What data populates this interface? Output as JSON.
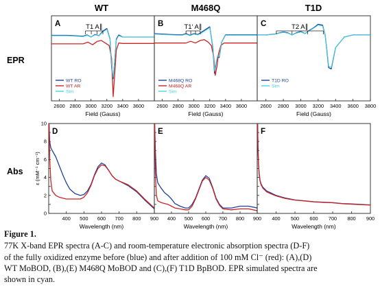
{
  "figure": {
    "column_titles": [
      "WT",
      "M468Q",
      "T1D"
    ],
    "row_labels": [
      "EPR",
      "Abs"
    ],
    "colors": {
      "blue": "#1f3f9a",
      "red": "#cc2222",
      "cyan": "#43d6e6"
    }
  },
  "chart_data": [
    {
      "panel": "A",
      "type": "line",
      "xlabel": "Field (Gauss)",
      "ylabel": "",
      "xlim": [
        2500,
        3800
      ],
      "xticks": [
        2600,
        2800,
        3000,
        3200,
        3400,
        3600
      ],
      "annotation": "T1 A∥",
      "series": [
        {
          "name": "WT RO",
          "color": "#1f3f9a",
          "x": [
            2500,
            2700,
            2900,
            2950,
            3000,
            3050,
            3100,
            3150,
            3200,
            3240,
            3260,
            3280,
            3300,
            3320,
            3350,
            3400,
            3600,
            3800
          ],
          "y": [
            0.54,
            0.54,
            0.52,
            0.55,
            0.5,
            0.56,
            0.53,
            0.64,
            0.7,
            0.45,
            -0.2,
            -0.48,
            -0.05,
            0.45,
            0.55,
            0.5,
            0.5,
            0.5
          ]
        },
        {
          "name": "WT AR",
          "color": "#cc2222",
          "x": [
            2500,
            2700,
            2900,
            2960,
            3020,
            3080,
            3130,
            3180,
            3230,
            3260,
            3280,
            3300,
            3320,
            3350,
            3400,
            3600,
            3800
          ],
          "y": [
            0.34,
            0.34,
            0.34,
            0.38,
            0.32,
            0.4,
            0.42,
            0.36,
            0.3,
            0.0,
            -0.9,
            -0.35,
            0.2,
            0.36,
            0.35,
            0.35,
            0.35
          ]
        },
        {
          "name": "Sim",
          "color": "#43d6e6",
          "x": [
            2500,
            2700,
            2900,
            2950,
            3000,
            3050,
            3100,
            3150,
            3200,
            3240,
            3260,
            3280,
            3300,
            3320,
            3350,
            3400,
            3600,
            3800
          ],
          "y": [
            0.53,
            0.53,
            0.51,
            0.54,
            0.5,
            0.55,
            0.53,
            0.62,
            0.68,
            0.44,
            -0.16,
            -0.44,
            -0.03,
            0.43,
            0.53,
            0.5,
            0.5,
            0.5
          ]
        }
      ]
    },
    {
      "panel": "B",
      "type": "line",
      "xlabel": "Field (Gauss)",
      "ylabel": "",
      "xlim": [
        2500,
        3800
      ],
      "xticks": [
        2600,
        2800,
        3000,
        3200,
        3400,
        3600
      ],
      "annotation": "T1′ A∥",
      "series": [
        {
          "name": "M468Q RO",
          "color": "#1f3f9a",
          "x": [
            2500,
            2700,
            2850,
            2900,
            2950,
            3000,
            3050,
            3100,
            3150,
            3200,
            3240,
            3260,
            3280,
            3300,
            3320,
            3350,
            3400,
            3600,
            3800
          ],
          "y": [
            0.58,
            0.56,
            0.55,
            0.58,
            0.54,
            0.58,
            0.56,
            0.62,
            0.68,
            0.74,
            0.25,
            -0.35,
            -0.12,
            0.05,
            0.02,
            0.38,
            0.55,
            0.55,
            0.55
          ]
        },
        {
          "name": "M468Q AR",
          "color": "#cc2222",
          "x": [
            2500,
            2700,
            2900,
            2960,
            3020,
            3080,
            3130,
            3180,
            3220,
            3250,
            3270,
            3290,
            3310,
            3340,
            3380,
            3600,
            3800
          ],
          "y": [
            0.36,
            0.36,
            0.36,
            0.4,
            0.36,
            0.42,
            0.44,
            0.38,
            0.3,
            0.05,
            -0.4,
            -0.2,
            0.1,
            0.3,
            0.36,
            0.36,
            0.36
          ]
        },
        {
          "name": "Sim",
          "color": "#43d6e6",
          "x": [
            2500,
            2700,
            2850,
            2900,
            2950,
            3000,
            3050,
            3100,
            3150,
            3200,
            3240,
            3260,
            3280,
            3300,
            3320,
            3350,
            3400,
            3600,
            3800
          ],
          "y": [
            0.57,
            0.55,
            0.54,
            0.57,
            0.53,
            0.57,
            0.55,
            0.6,
            0.66,
            0.72,
            0.28,
            -0.3,
            -0.1,
            0.06,
            0.04,
            0.38,
            0.54,
            0.54,
            0.54
          ]
        }
      ]
    },
    {
      "panel": "C",
      "type": "line",
      "xlabel": "Field (Gauss)",
      "ylabel": "",
      "xlim": [
        2500,
        3800
      ],
      "xticks": [
        2600,
        2800,
        3000,
        3200,
        3400,
        3600,
        3800
      ],
      "annotation": "T2 A∥",
      "series": [
        {
          "name": "T1D RO",
          "color": "#1f3f9a",
          "x": [
            2500,
            2600,
            2700,
            2800,
            2850,
            2900,
            2950,
            3000,
            3050,
            3100,
            3150,
            3200,
            3250,
            3280,
            3300,
            3320,
            3350,
            3400,
            3500,
            3600,
            3800
          ],
          "y": [
            0.55,
            0.55,
            0.57,
            0.62,
            0.6,
            0.55,
            0.6,
            0.63,
            0.58,
            0.66,
            0.72,
            0.8,
            0.78,
            0.55,
            0.2,
            -0.22,
            -0.25,
            0.25,
            0.5,
            0.55,
            0.55
          ]
        },
        {
          "name": "Sim",
          "color": "#43d6e6",
          "x": [
            2500,
            2600,
            2700,
            2800,
            2850,
            2900,
            2950,
            3000,
            3050,
            3100,
            3150,
            3200,
            3250,
            3280,
            3300,
            3320,
            3350,
            3400,
            3500,
            3600,
            3800
          ],
          "y": [
            0.55,
            0.55,
            0.57,
            0.61,
            0.59,
            0.55,
            0.59,
            0.62,
            0.58,
            0.65,
            0.71,
            0.78,
            0.76,
            0.55,
            0.22,
            -0.18,
            -0.22,
            0.25,
            0.5,
            0.55,
            0.55
          ]
        }
      ]
    },
    {
      "panel": "D",
      "type": "line",
      "xlabel": "Wavelength (nm)",
      "ylabel": "ε (mM⁻¹ cm⁻¹)",
      "xlim": [
        300,
        900
      ],
      "ylim": [
        0,
        10
      ],
      "xticks": [
        400,
        500,
        600,
        700,
        800,
        900
      ],
      "yticks": [
        0,
        1,
        2,
        3,
        4,
        5,
        6,
        7,
        8,
        9,
        10
      ],
      "series": [
        {
          "name": "oxidized",
          "color": "#1f3f9a",
          "x": [
            302,
            306,
            312,
            320,
            340,
            360,
            380,
            400,
            420,
            450,
            480,
            500,
            520,
            540,
            560,
            580,
            600,
            620,
            640,
            660,
            680,
            700,
            750,
            800,
            850,
            900
          ],
          "y": [
            10,
            8.0,
            7.3,
            7.0,
            6.3,
            5.3,
            4.3,
            3.4,
            2.7,
            2.2,
            2.0,
            2.1,
            2.5,
            3.2,
            4.3,
            5.2,
            5.6,
            5.4,
            4.8,
            4.2,
            3.8,
            3.6,
            3.1,
            2.4,
            1.4,
            0.5
          ]
        },
        {
          "name": "+100 mM Cl⁻",
          "color": "#cc2222",
          "x": [
            302,
            306,
            312,
            320,
            340,
            360,
            380,
            400,
            420,
            450,
            480,
            500,
            520,
            540,
            560,
            580,
            600,
            620,
            640,
            660,
            680,
            700,
            750,
            800,
            850,
            900
          ],
          "y": [
            10,
            6.0,
            3.6,
            2.5,
            2.0,
            1.8,
            1.7,
            1.6,
            1.6,
            1.6,
            1.6,
            1.8,
            2.3,
            3.1,
            4.2,
            5.0,
            5.4,
            5.3,
            4.8,
            4.2,
            3.8,
            3.6,
            3.2,
            2.5,
            1.5,
            0.6
          ]
        }
      ]
    },
    {
      "panel": "E",
      "type": "line",
      "xlabel": "Wavelength (nm)",
      "ylabel": "",
      "xlim": [
        300,
        900
      ],
      "ylim": [
        0,
        10
      ],
      "xticks": [
        400,
        500,
        600,
        700,
        800,
        900
      ],
      "yticks": [
        0,
        1,
        2,
        3,
        4,
        5,
        6,
        7,
        8,
        9,
        10
      ],
      "series": [
        {
          "name": "oxidized",
          "color": "#1f3f9a",
          "x": [
            302,
            306,
            312,
            320,
            340,
            360,
            380,
            400,
            420,
            450,
            480,
            500,
            520,
            540,
            560,
            580,
            600,
            620,
            640,
            660,
            680,
            700,
            750,
            800,
            850,
            900
          ],
          "y": [
            10,
            7.0,
            4.4,
            3.4,
            2.8,
            2.3,
            2.0,
            1.6,
            1.1,
            0.8,
            0.6,
            0.6,
            1.0,
            1.7,
            2.7,
            3.7,
            4.2,
            3.9,
            2.9,
            1.7,
            1.0,
            0.6,
            0.6,
            0.8,
            0.8,
            0.6
          ]
        },
        {
          "name": "+100 mM Cl⁻",
          "color": "#cc2222",
          "x": [
            302,
            306,
            312,
            320,
            340,
            360,
            380,
            400,
            420,
            450,
            480,
            500,
            520,
            540,
            560,
            580,
            600,
            620,
            640,
            660,
            680,
            700,
            750,
            800,
            850,
            900
          ],
          "y": [
            10,
            4.5,
            2.0,
            1.4,
            1.2,
            1.1,
            1.0,
            0.8,
            0.6,
            0.5,
            0.4,
            0.4,
            0.8,
            1.6,
            2.6,
            3.6,
            4.0,
            3.7,
            2.8,
            1.6,
            0.9,
            0.5,
            0.4,
            0.5,
            0.5,
            0.3
          ]
        }
      ]
    },
    {
      "panel": "F",
      "type": "line",
      "xlabel": "Wavelength (nm)",
      "ylabel": "",
      "xlim": [
        300,
        900
      ],
      "ylim": [
        0,
        10
      ],
      "xticks": [
        400,
        500,
        600,
        700,
        800,
        900
      ],
      "yticks": [
        0,
        1,
        2,
        3,
        4,
        5,
        6,
        7,
        8,
        9,
        10
      ],
      "series": [
        {
          "name": "oxidized",
          "color": "#1f3f9a",
          "x": [
            302,
            304,
            307,
            310,
            315,
            320,
            330,
            350,
            370,
            400,
            450,
            500,
            550,
            600,
            650,
            700,
            750,
            800,
            850,
            900
          ],
          "y": [
            10,
            7.5,
            5.5,
            4.5,
            3.7,
            3.3,
            2.9,
            2.5,
            2.3,
            2.0,
            1.7,
            1.5,
            1.4,
            1.3,
            1.25,
            1.2,
            1.1,
            1.05,
            1.0,
            0.95
          ]
        },
        {
          "name": "+100 mM Cl⁻",
          "color": "#cc2222",
          "x": [
            302,
            304,
            307,
            310,
            315,
            320,
            330,
            350,
            370,
            400,
            450,
            500,
            550,
            600,
            650,
            700,
            750,
            800,
            850,
            900
          ],
          "y": [
            10,
            7.4,
            5.4,
            4.4,
            3.6,
            3.2,
            2.8,
            2.4,
            2.2,
            1.95,
            1.65,
            1.48,
            1.38,
            1.28,
            1.22,
            1.18,
            1.08,
            1.02,
            0.98,
            0.92
          ]
        }
      ]
    }
  ],
  "caption": {
    "head": "Figure 1.",
    "lines": [
      "77K X-band EPR spectra (A-C) and room-temperature electronic absorption spectra (D-F)",
      "of the fully oxidized enzyme before (blue) and after addition of 100 mM Cl⁻ (red): (A),(D)",
      "WT MoBOD, (B),(E) M468Q MoBOD and (C),(F) T1D BpBOD. EPR simulated spectra are",
      "shown in cyan."
    ]
  }
}
